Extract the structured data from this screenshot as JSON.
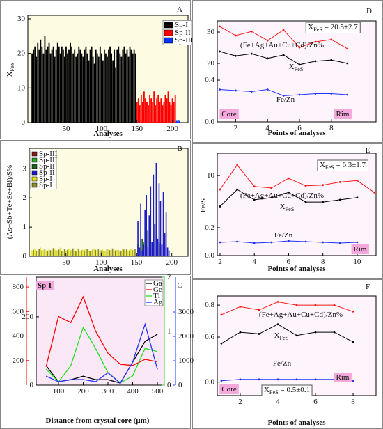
{
  "chart_data": [
    {
      "type": "bar",
      "panel": "A",
      "xlabel": "Analyses",
      "ylabel": "X",
      "ylabel_sub": "FeS",
      "xlim": [
        -4,
        222
      ],
      "ylim": [
        0,
        31
      ],
      "xticks": [
        50,
        100,
        150,
        200
      ],
      "yticks": [
        0,
        10,
        20,
        30
      ],
      "legend": "upper right",
      "series": [
        {
          "name": "Sp-I",
          "color": "#000000",
          "x": [
            2,
            4,
            6,
            8,
            10,
            12,
            14,
            16,
            18,
            20,
            22,
            24,
            26,
            28,
            30,
            32,
            34,
            36,
            38,
            40,
            42,
            44,
            46,
            48,
            50,
            52,
            54,
            56,
            58,
            60,
            62,
            64,
            66,
            68,
            70,
            72,
            74,
            76,
            78,
            80,
            82,
            84,
            86,
            88,
            90,
            92,
            94,
            96,
            98,
            100,
            102,
            104,
            106,
            108,
            110,
            112,
            114,
            116,
            118,
            120,
            122,
            124,
            126,
            128,
            130,
            132,
            134,
            136,
            138,
            140,
            142,
            144,
            146,
            148
          ],
          "values": [
            20,
            21,
            22,
            19,
            23,
            21,
            24,
            22,
            20,
            25,
            21,
            22,
            23,
            20,
            21,
            22,
            19,
            21,
            23,
            22,
            20,
            22,
            21,
            19,
            22,
            20,
            21,
            23,
            22,
            20,
            21,
            19,
            20,
            22,
            21,
            20,
            19,
            21,
            22,
            20,
            18,
            21,
            22,
            19,
            17,
            21,
            20,
            19,
            22,
            20,
            18,
            21,
            20,
            19,
            21,
            22,
            20,
            18,
            21,
            16,
            21,
            22,
            20,
            19,
            21,
            22,
            20,
            21,
            19,
            22,
            21,
            20,
            21,
            20
          ]
        },
        {
          "name": "Sp-II",
          "color": "#ff0000",
          "x": [
            150,
            152,
            154,
            156,
            158,
            160,
            162,
            164,
            166,
            168,
            170,
            172,
            174,
            176,
            178,
            180,
            182,
            184,
            186,
            188,
            190,
            192,
            194,
            196,
            198,
            200,
            202,
            204
          ],
          "values": [
            6,
            7,
            5,
            8,
            6,
            9,
            7,
            6,
            5,
            8,
            7,
            6,
            9,
            5,
            7,
            8,
            6,
            7,
            5,
            6,
            8,
            7,
            9,
            6,
            5,
            7,
            6,
            8
          ]
        },
        {
          "name": "Sp-III",
          "color": "#0033ff",
          "x": [
            206,
            208,
            210
          ],
          "values": [
            0.5,
            0.6,
            0.5
          ]
        }
      ]
    },
    {
      "type": "bar",
      "panel": "B",
      "xlabel": "Analyses",
      "ylabel": "(As+Sb+Te+Se+Bi)/S%",
      "xlim": [
        -2,
        223
      ],
      "ylim": [
        0,
        3.7
      ],
      "xticks": [
        50,
        100,
        150,
        200
      ],
      "yticks": [
        0,
        1,
        2,
        3
      ],
      "legend": "upper left",
      "series": [
        {
          "name": "Sp-III",
          "color": "#8b1a1a",
          "x": [
            156,
            170,
            184,
            190
          ],
          "values": [
            0.3,
            0.5,
            0.4,
            0.3
          ]
        },
        {
          "name": "Sp-III",
          "color": "#2ea02e",
          "x": [
            160,
            178
          ],
          "values": [
            0.5,
            0.7
          ]
        },
        {
          "name": "Sp-II",
          "color": "#1f5f1f",
          "x": [
            152,
            158,
            166,
            174,
            182
          ],
          "values": [
            0.4,
            0.6,
            0.9,
            1.1,
            0.5
          ]
        },
        {
          "name": "Sp-II",
          "color": "#1c1cc8",
          "x": [
            150,
            152,
            154,
            156,
            158,
            160,
            162,
            164,
            166,
            168,
            170,
            172,
            174,
            176,
            178,
            180,
            182,
            184,
            186,
            188,
            190,
            192,
            194,
            196
          ],
          "values": [
            0.1,
            1.2,
            0.3,
            1.8,
            0.2,
            0.4,
            1.6,
            2.1,
            0.3,
            1.4,
            2.4,
            0.5,
            2.8,
            1.1,
            3.2,
            0.6,
            2.5,
            1.9,
            0.4,
            2.2,
            0.8,
            1.5,
            0.3,
            0.2
          ]
        },
        {
          "name": "Sp-I",
          "color": "#e6e619",
          "x": [
            2,
            6,
            10,
            14,
            18,
            22,
            26,
            30,
            34,
            38,
            42,
            46,
            50,
            54,
            58,
            62,
            66,
            70,
            74,
            78,
            82,
            86,
            90,
            94,
            98,
            102,
            106,
            110,
            114,
            118,
            122,
            126,
            130,
            134,
            138,
            142,
            146
          ],
          "values": [
            0.2,
            0.25,
            0.18,
            0.3,
            0.22,
            0.2,
            0.27,
            0.19,
            0.24,
            0.21,
            0.3,
            0.2,
            0.17,
            0.26,
            0.22,
            0.2,
            0.28,
            0.18,
            0.23,
            0.25,
            0.2,
            0.19,
            0.27,
            0.22,
            0.21,
            0.24,
            0.18,
            0.26,
            0.2,
            0.23,
            0.22,
            0.19,
            0.25,
            0.21,
            0.2,
            0.24,
            0.22
          ]
        },
        {
          "name": "Sp-I",
          "color": "#8a8a2a",
          "x": [
            4,
            8,
            12,
            16,
            20,
            24,
            28,
            32,
            36,
            40,
            44,
            48,
            52,
            56,
            60,
            64,
            68,
            72,
            76,
            80,
            84,
            88,
            92,
            96,
            100,
            104,
            108,
            112,
            116,
            120,
            124,
            128,
            132,
            136,
            140,
            144,
            148
          ],
          "values": [
            0.22,
            0.18,
            0.26,
            0.2,
            0.24,
            0.19,
            0.21,
            0.28,
            0.2,
            0.23,
            0.18,
            0.25,
            0.22,
            0.2,
            0.27,
            0.19,
            0.24,
            0.21,
            0.2,
            0.26,
            0.18,
            0.23,
            0.22,
            0.25,
            0.2,
            0.19,
            0.24,
            0.21,
            0.27,
            0.2,
            0.22,
            0.18,
            0.23,
            0.25,
            0.2,
            0.21,
            0.24
          ]
        }
      ]
    },
    {
      "type": "line",
      "panel": "C",
      "label_box": "Sp-I",
      "xlabel": "Distance from crystal core (µm)",
      "xlim": [
        10,
        528
      ],
      "xticks": [
        100,
        200,
        300,
        400,
        500
      ],
      "x": [
        50,
        100,
        150,
        200,
        250,
        300,
        350,
        400,
        450,
        500
      ],
      "legend": "upper right",
      "series": [
        {
          "name": "Ga",
          "color": "#000000",
          "ylim": [
            0,
            316
          ],
          "yticks": [
            0,
            200
          ],
          "values": [
            57,
            10,
            16,
            26,
            16,
            16,
            6,
            67,
            128,
            149
          ]
        },
        {
          "name": "Ge",
          "color": "#ff0000",
          "ylim": [
            0,
            880
          ],
          "yticks": [
            200,
            400,
            600,
            800
          ],
          "values": [
            150,
            560,
            510,
            720,
            440,
            260,
            170,
            160,
            210,
            190
          ]
        },
        {
          "name": "Tl",
          "color": "#22dd22",
          "ylim": [
            0,
            2
          ],
          "yticks": [
            0,
            1,
            2
          ],
          "values": [
            0.3,
            0.06,
            0.36,
            1.07,
            0.68,
            0.23,
            0.04,
            0.17,
            0.68,
            0.62
          ]
        },
        {
          "name": "Ag",
          "color": "#2233ff",
          "ylim": [
            0,
            4430
          ],
          "yticks": [
            0,
            1000,
            2000,
            3000
          ],
          "values": [
            370,
            140,
            230,
            230,
            140,
            510,
            80,
            940,
            2500,
            650
          ]
        }
      ]
    },
    {
      "type": "line",
      "panel": "D",
      "xlabel": "Points of analyses",
      "core_label": "Core",
      "rim_label": "Rim",
      "stat": {
        "symbol": "X",
        "sub": "FeS",
        "text": " = 20.5±2.7"
      },
      "xlim": [
        0.85,
        10.8
      ],
      "xticks": [
        2,
        4,
        6,
        8
      ],
      "x": [
        1,
        2,
        3,
        4,
        5,
        6,
        7,
        8,
        9
      ],
      "ylim_upper": [
        17.56,
        33.56
      ],
      "yticks_upper": [
        20,
        30
      ],
      "ylim_lower": [
        0,
        0.487
      ],
      "yticks_lower": [
        {
          "value": 0,
          "label": "0.0"
        },
        0.4
      ],
      "series": [
        {
          "name": "(Fe+Ag+Au+Cu+Cd)/Zn%",
          "color": "#ff1a1a",
          "axis": "upper",
          "values": [
            31.8,
            28.9,
            30.2,
            27.3,
            30.7,
            25.1,
            26.9,
            27.6,
            24.7
          ]
        },
        {
          "name": "X",
          "name_sub": "FeS",
          "color": "#000000",
          "axis": "upper",
          "values": [
            23.8,
            22.4,
            23.1,
            21.6,
            22.7,
            19.6,
            20.7,
            21.1,
            20.0
          ]
        },
        {
          "name": "Fe/Zn",
          "color": "#2233ff",
          "axis": "lower",
          "values": [
            0.31,
            0.3,
            0.29,
            0.31,
            0.25,
            0.26,
            0.27,
            0.27,
            0.26
          ]
        }
      ]
    },
    {
      "type": "line",
      "panel": "E",
      "xlabel": "Points of analyses",
      "ylabel": "Fe/S",
      "rim_label": "Rim",
      "stat": {
        "symbol": "X",
        "sub": "FeS",
        "text": " = 6.3±1.7"
      },
      "xlim": [
        1.84,
        11.1
      ],
      "xticks": [
        2,
        4,
        6,
        8,
        10
      ],
      "x": [
        2,
        3,
        4,
        5,
        6,
        7,
        8,
        9,
        10,
        11
      ],
      "ylim_upper": [
        5,
        13
      ],
      "yticks_upper": [
        10
      ],
      "ylim_lower": [
        0,
        0.31
      ],
      "yticks_lower": [
        {
          "value": 0,
          "label": "0.0"
        },
        0.2
      ],
      "series": [
        {
          "name": "(Fe+Ag+Au+Cu+Cd)/Zn%",
          "color": "#ff1a1a",
          "axis": "upper",
          "values": [
            8.1,
            11.4,
            8.5,
            8.3,
            9.6,
            8.6,
            8.7,
            9.1,
            9.3,
            7.7
          ]
        },
        {
          "name": "X",
          "name_sub": "FeS",
          "color": "#000000",
          "axis": "upper",
          "values": [
            5.8,
            8.1,
            6.7,
            7.0,
            7.7,
            6.4,
            6.4,
            6.7,
            7.0,
            null
          ]
        },
        {
          "name": "Fe/Zn",
          "color": "#2233ff",
          "axis": "lower",
          "values": [
            0.095,
            0.1,
            0.09,
            0.095,
            0.105,
            0.1,
            0.095,
            0.09,
            0.095,
            null
          ]
        }
      ]
    },
    {
      "type": "line",
      "panel": "F",
      "xlabel": "Points of analyses",
      "core_label": "Core",
      "rim_label": "Rim",
      "stat": {
        "symbol": "X",
        "sub": "FeS",
        "text": " = 0.5±0.1"
      },
      "xlim": [
        0.78,
        9.22
      ],
      "xticks": [
        2,
        4,
        6,
        8
      ],
      "x": [
        1,
        2,
        3,
        4,
        5,
        6,
        7,
        8
      ],
      "ylim_upper": [
        0.487,
        0.857
      ],
      "yticks_upper": [
        0.6,
        0.8
      ],
      "ylim_lower": [
        -0.05,
        0.1
      ],
      "yticks_lower": [
        {
          "value": 0,
          "label": "0.0"
        }
      ],
      "series": [
        {
          "name": "(Fe+Ag+Au+Cu+Cd)/Zn%",
          "color": "#ff1a1a",
          "axis": "upper",
          "values": [
            0.74,
            0.79,
            0.77,
            0.82,
            0.8,
            0.8,
            0.8,
            0.76
          ]
        },
        {
          "name": "X",
          "name_sub": "FeS",
          "color": "#000000",
          "axis": "upper",
          "values": [
            0.56,
            0.63,
            0.62,
            0.68,
            0.61,
            0.63,
            0.63,
            0.57
          ]
        },
        {
          "name": "Fe/Zn",
          "color": "#2233ff",
          "axis": "lower",
          "values": [
            0.005,
            0.01,
            0.01,
            0.01,
            0.01,
            0.01,
            0.01,
            0.005
          ]
        }
      ]
    }
  ]
}
